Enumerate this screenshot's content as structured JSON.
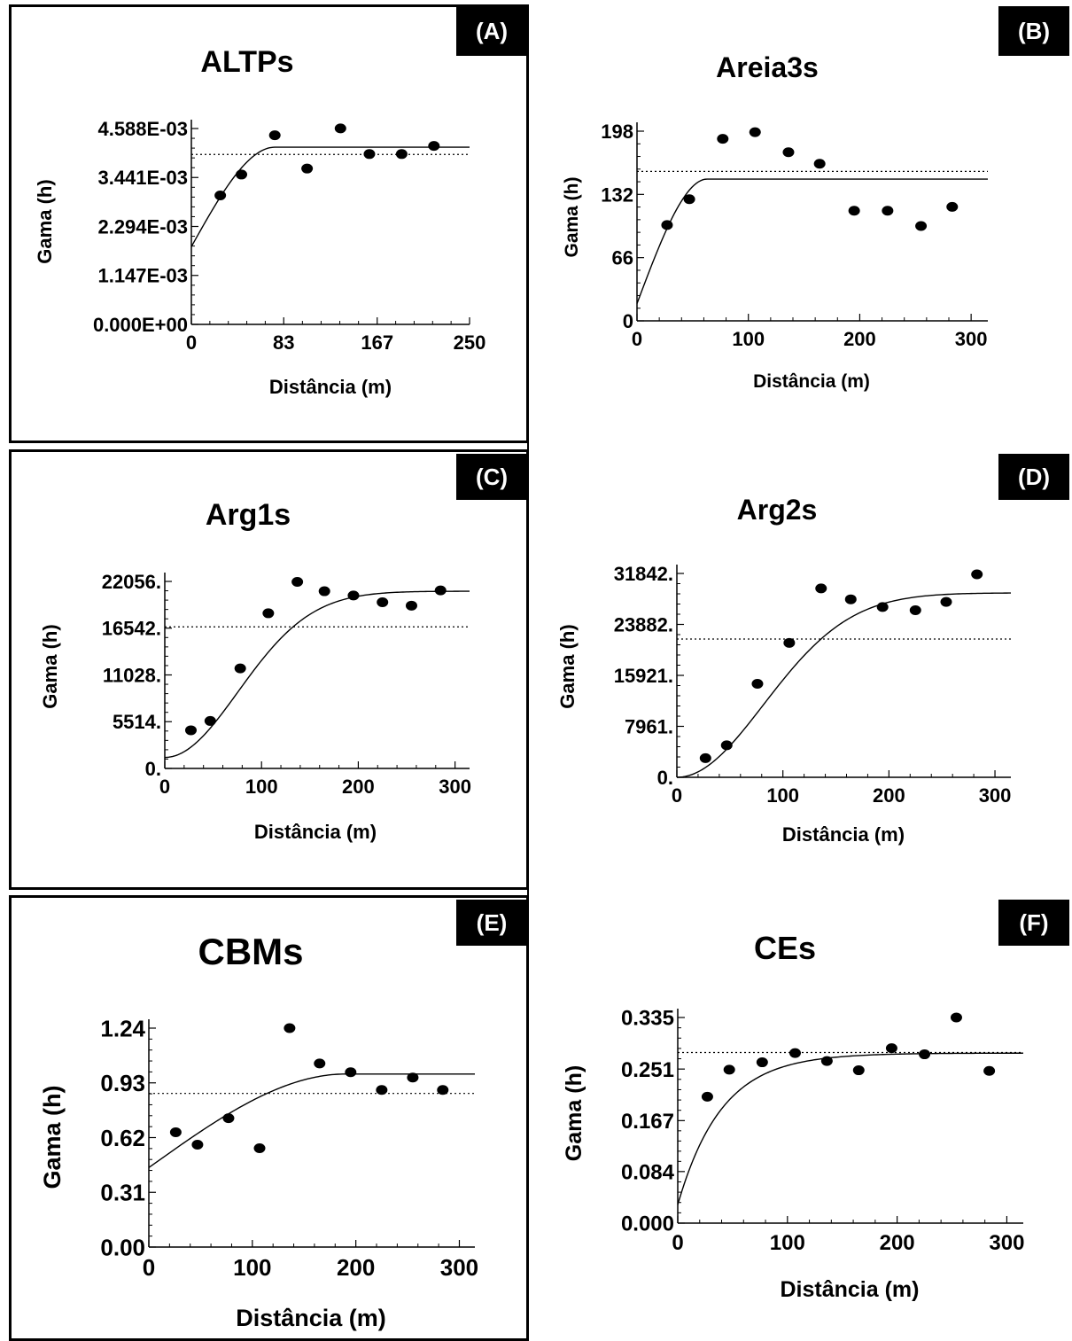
{
  "chart_data": [
    {
      "type": "scatter",
      "panel_label": "(A)",
      "title": "ALTPs",
      "xlabel": "Distância (m)",
      "ylabel": "Gama (h)",
      "xlim": [
        0,
        250
      ],
      "ylim": [
        0,
        0.004588
      ],
      "xticks": [
        0,
        83,
        167,
        250
      ],
      "xtick_labels": [
        "0",
        "83",
        "167",
        "250"
      ],
      "yticks": [
        0,
        0.001147,
        0.002294,
        0.003441,
        0.004588
      ],
      "ytick_labels": [
        "0.000E+00",
        "1.147E-03",
        "2.294E-03",
        "3.441E-03",
        "4.588E-03"
      ],
      "series": [
        {
          "values": [
            [
              26,
              0.00302
            ],
            [
              45,
              0.00351
            ],
            [
              75,
              0.00443
            ],
            [
              104,
              0.00365
            ],
            [
              134,
              0.00459
            ],
            [
              160,
              0.00399
            ],
            [
              189,
              0.00399
            ],
            [
              218,
              0.00418
            ]
          ]
        }
      ],
      "model": {
        "type": "spherical",
        "nugget": 0.00182,
        "sill": 0.00415,
        "range": 75
      },
      "variance_line": 0.00398
    },
    {
      "type": "scatter",
      "panel_label": "(B)",
      "title": "Areia3s",
      "xlabel": "Distância (m)",
      "ylabel": "Gama (h)",
      "xlim": [
        0,
        315
      ],
      "ylim": [
        0,
        198
      ],
      "xticks": [
        0,
        100,
        200,
        300
      ],
      "xtick_labels": [
        "0",
        "100",
        "200",
        "300"
      ],
      "yticks": [
        0,
        66,
        132,
        198
      ],
      "ytick_labels": [
        "0",
        "66",
        "132",
        "198"
      ],
      "series": [
        {
          "values": [
            [
              27,
              100
            ],
            [
              47,
              127
            ],
            [
              77,
              190
            ],
            [
              106,
              197
            ],
            [
              136,
              176
            ],
            [
              164,
              164
            ],
            [
              195,
              115
            ],
            [
              225,
              115
            ],
            [
              255,
              99
            ],
            [
              283,
              119
            ]
          ]
        }
      ],
      "model": {
        "type": "spherical",
        "nugget": 18,
        "sill": 148,
        "range": 63
      },
      "variance_line": 156
    },
    {
      "type": "scatter",
      "panel_label": "(C)",
      "title": "Arg1s",
      "xlabel": "Distância (m)",
      "ylabel": "Gama (h)",
      "xlim": [
        0,
        315
      ],
      "ylim": [
        0,
        22056
      ],
      "xticks": [
        0,
        100,
        200,
        300
      ],
      "xtick_labels": [
        "0",
        "100",
        "200",
        "300"
      ],
      "yticks": [
        0,
        5514,
        11028,
        16542,
        22056
      ],
      "ytick_labels": [
        "0.",
        "5514.",
        "11028.",
        "16542.",
        "22056."
      ],
      "series": [
        {
          "values": [
            [
              27,
              4500
            ],
            [
              47,
              5600
            ],
            [
              78,
              11800
            ],
            [
              107,
              18300
            ],
            [
              137,
              22000
            ],
            [
              165,
              20900
            ],
            [
              195,
              20400
            ],
            [
              225,
              19600
            ],
            [
              255,
              19200
            ],
            [
              285,
              21000
            ]
          ]
        }
      ],
      "model": {
        "type": "gaussian",
        "nugget": 1300,
        "sill": 20900,
        "range": 185
      },
      "variance_line": 16700
    },
    {
      "type": "scatter",
      "panel_label": "(D)",
      "title": "Arg2s",
      "xlabel": "Distância (m)",
      "ylabel": "Gama (h)",
      "xlim": [
        0,
        315
      ],
      "ylim": [
        0,
        31842
      ],
      "xticks": [
        0,
        100,
        200,
        300
      ],
      "xtick_labels": [
        "0",
        "100",
        "200",
        "300"
      ],
      "yticks": [
        0,
        7961,
        15921,
        23882,
        31842
      ],
      "ytick_labels": [
        "0.",
        "7961.",
        "15921.",
        "23882.",
        "31842."
      ],
      "series": [
        {
          "values": [
            [
              27,
              3000
            ],
            [
              47,
              5000
            ],
            [
              76,
              14600
            ],
            [
              106,
              21000
            ],
            [
              136,
              29500
            ],
            [
              164,
              27800
            ],
            [
              194,
              26600
            ],
            [
              225,
              26100
            ],
            [
              254,
              27400
            ],
            [
              283,
              31700
            ]
          ]
        }
      ],
      "model": {
        "type": "gaussian",
        "nugget": 0,
        "sill": 28800,
        "range": 200
      },
      "variance_line": 21600
    },
    {
      "type": "scatter",
      "panel_label": "(E)",
      "title": "CBMs",
      "xlabel": "Distância (m)",
      "ylabel": "Gama (h)",
      "xlim": [
        0,
        315
      ],
      "ylim": [
        0,
        1.24
      ],
      "xticks": [
        0,
        100,
        200,
        300
      ],
      "xtick_labels": [
        "0",
        "100",
        "200",
        "300"
      ],
      "yticks": [
        0,
        0.31,
        0.62,
        0.93,
        1.24
      ],
      "ytick_labels": [
        "0.00",
        "0.31",
        "0.62",
        "0.93",
        "1.24"
      ],
      "series": [
        {
          "values": [
            [
              26,
              0.65
            ],
            [
              47,
              0.58
            ],
            [
              77,
              0.73
            ],
            [
              107,
              0.56
            ],
            [
              136,
              1.24
            ],
            [
              165,
              1.04
            ],
            [
              195,
              0.99
            ],
            [
              225,
              0.89
            ],
            [
              255,
              0.96
            ],
            [
              284,
              0.89
            ]
          ]
        }
      ],
      "model": {
        "type": "spherical",
        "nugget": 0.45,
        "sill": 0.98,
        "range": 190
      },
      "variance_line": 0.87
    },
    {
      "type": "scatter",
      "panel_label": "(F)",
      "title": "CEs",
      "xlabel": "Distância (m)",
      "ylabel": "Gama (h)",
      "xlim": [
        0,
        315
      ],
      "ylim": [
        0,
        0.335
      ],
      "xticks": [
        0,
        100,
        200,
        300
      ],
      "xtick_labels": [
        "0",
        "100",
        "200",
        "300"
      ],
      "yticks": [
        0,
        0.084,
        0.167,
        0.251,
        0.335
      ],
      "ytick_labels": [
        "0.000",
        "0.084",
        "0.167",
        "0.251",
        "0.335"
      ],
      "series": [
        {
          "values": [
            [
              27,
              0.206
            ],
            [
              47,
              0.25
            ],
            [
              77,
              0.262
            ],
            [
              107,
              0.277
            ],
            [
              136,
              0.264
            ],
            [
              165,
              0.249
            ],
            [
              195,
              0.285
            ],
            [
              225,
              0.275
            ],
            [
              254,
              0.335
            ],
            [
              284,
              0.248
            ]
          ]
        }
      ],
      "model": {
        "type": "exponential",
        "nugget": 0.03,
        "sill": 0.277,
        "range": 120
      },
      "variance_line": 0.278
    }
  ]
}
